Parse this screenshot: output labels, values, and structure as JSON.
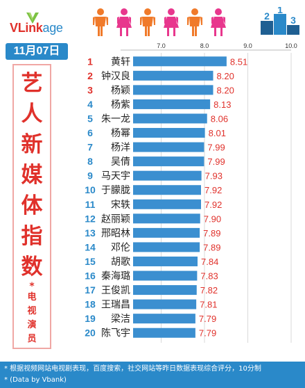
{
  "logo": {
    "prefix": "VLink",
    "suffix": "age"
  },
  "date": "11月07日",
  "side_title": [
    "艺",
    "人",
    "新",
    "媒",
    "体",
    "指",
    "数"
  ],
  "side_star": "*",
  "side_subtitle": [
    "电",
    "视",
    "演",
    "员"
  ],
  "footer": {
    "line1": "* 根据视频网站电视剧表现，百度搜索，社交网站等昨日数据表现综合评分，10分制",
    "line2": "* (Data by Vbank)"
  },
  "colors": {
    "brand_red": "#e0312b",
    "brand_blue": "#2a89c9",
    "bar": "#3b8fd0",
    "value_text": "#e0312b",
    "person_orange": "#f07a2a",
    "person_pink": "#e8378d"
  },
  "chart_data": {
    "type": "bar",
    "orientation": "horizontal",
    "xlim": [
      6.0,
      10.0
    ],
    "ticks": [
      "7.0",
      "8.0",
      "9.0",
      "10.0"
    ],
    "tick_values": [
      7.0,
      8.0,
      9.0,
      10.0
    ],
    "grid": true,
    "ranks": [
      "1",
      "2",
      "3",
      "4",
      "5",
      "6",
      "7",
      "8",
      "9",
      "10",
      "11",
      "12",
      "13",
      "14",
      "15",
      "16",
      "17",
      "18",
      "19",
      "20"
    ],
    "categories": [
      "黄轩",
      "钟汉良",
      "杨颖",
      "杨紫",
      "朱一龙",
      "杨幂",
      "杨洋",
      "吴倩",
      "马天宇",
      "于朦胧",
      "宋轶",
      "赵丽颖",
      "邢昭林",
      "邓伦",
      "胡歌",
      "秦海璐",
      "王俊凯",
      "王瑞昌",
      "梁洁",
      "陈飞宇"
    ],
    "values": [
      8.51,
      8.2,
      8.2,
      8.13,
      8.06,
      8.01,
      7.99,
      7.99,
      7.93,
      7.92,
      7.92,
      7.9,
      7.89,
      7.89,
      7.84,
      7.83,
      7.82,
      7.81,
      7.79,
      7.79
    ],
    "value_labels": [
      "8.51",
      "8.20",
      "8.20",
      "8.13",
      "8.06",
      "8.01",
      "7.99",
      "7.99",
      "7.93",
      "7.92",
      "7.92",
      "7.90",
      "7.89",
      "7.89",
      "7.84",
      "7.83",
      "7.82",
      "7.81",
      "7.79",
      "7.79"
    ]
  }
}
